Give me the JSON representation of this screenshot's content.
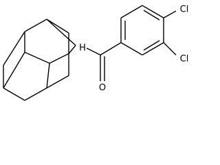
{
  "atoms": [
    {
      "label": "Cl"
    },
    {
      "label": "Cl"
    },
    {
      "label": "H"
    },
    {
      "label": "O"
    }
  ]
}
